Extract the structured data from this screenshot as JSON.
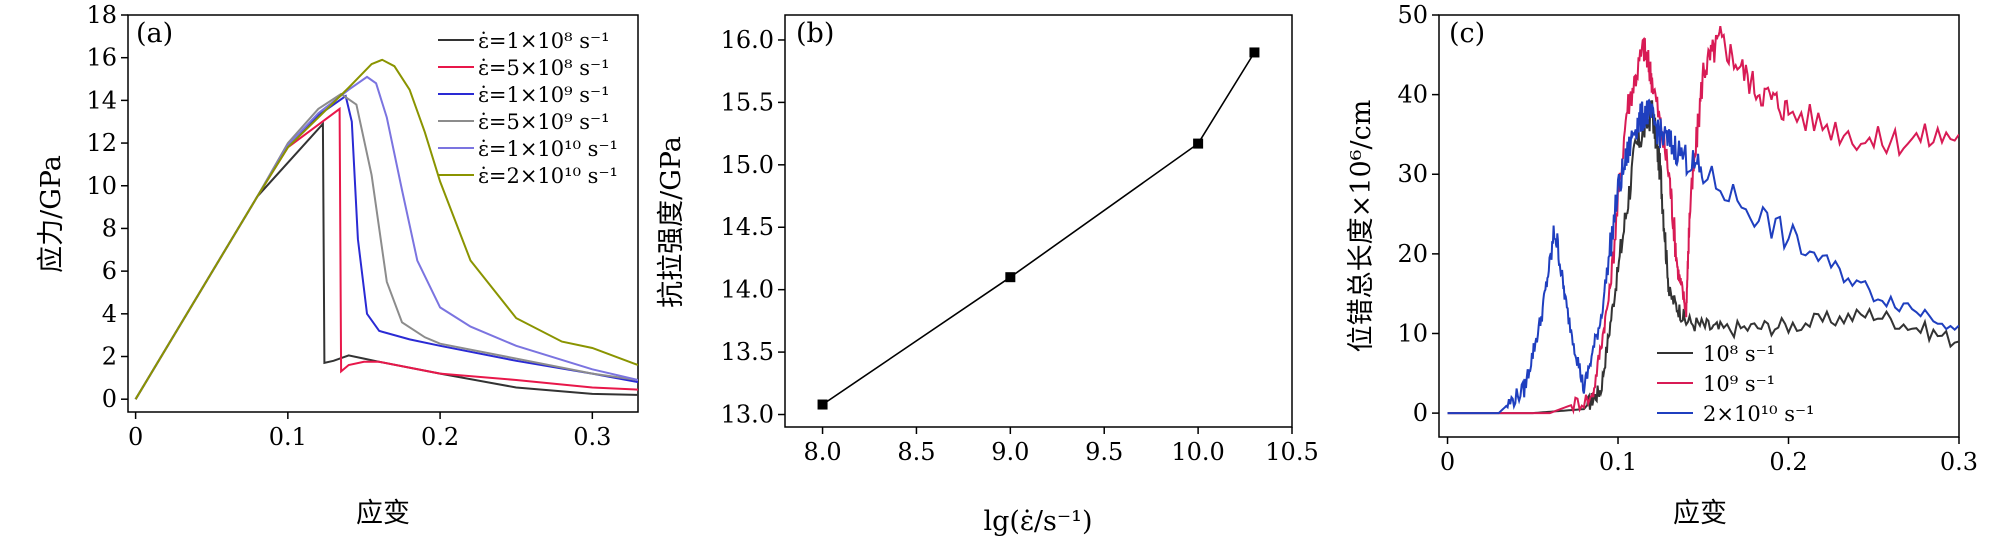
{
  "chart_data": [
    {
      "panel": "(a)",
      "type": "line",
      "xlabel": "应变",
      "ylabel": "应力/GPa",
      "xlim": [
        -0.005,
        0.33
      ],
      "ylim": [
        -0.6,
        18
      ],
      "xticks": [
        0,
        0.1,
        0.2,
        0.3
      ],
      "xticklabels": [
        "0",
        "0.1",
        "0.2",
        "0.3"
      ],
      "yticks": [
        0,
        2,
        4,
        6,
        8,
        10,
        12,
        14,
        16,
        18
      ],
      "yticklabels": [
        "0",
        "2",
        "4",
        "6",
        "8",
        "10",
        "12",
        "14",
        "16",
        "18"
      ],
      "legend_position": "top-right",
      "series": [
        {
          "name": "ε̇=1×10⁸ s⁻¹",
          "color": "#333333",
          "x": [
            0,
            0.08,
            0.123,
            0.124,
            0.13,
            0.14,
            0.15,
            0.16,
            0.2,
            0.25,
            0.3,
            0.33
          ],
          "y": [
            0,
            9.5,
            12.9,
            1.7,
            1.8,
            2.05,
            1.9,
            1.75,
            1.2,
            0.55,
            0.25,
            0.2
          ]
        },
        {
          "name": "ε̇=5×10⁸ s⁻¹",
          "color": "#e8174a",
          "x": [
            0,
            0.08,
            0.1,
            0.134,
            0.135,
            0.14,
            0.15,
            0.16,
            0.2,
            0.25,
            0.3,
            0.33
          ],
          "y": [
            0,
            9.5,
            11.8,
            13.6,
            1.3,
            1.6,
            1.75,
            1.75,
            1.2,
            0.9,
            0.55,
            0.45
          ]
        },
        {
          "name": "ε̇=1×10⁹ s⁻¹",
          "color": "#2a2ad4",
          "x": [
            0,
            0.08,
            0.1,
            0.12,
            0.138,
            0.142,
            0.146,
            0.152,
            0.16,
            0.18,
            0.2,
            0.25,
            0.3,
            0.33
          ],
          "y": [
            0,
            9.5,
            11.9,
            13.3,
            14.2,
            13.0,
            7.5,
            4.0,
            3.2,
            2.8,
            2.5,
            1.8,
            1.2,
            0.8
          ]
        },
        {
          "name": "ε̇=5×10⁹ s⁻¹",
          "color": "#8c8c8c",
          "x": [
            0,
            0.08,
            0.1,
            0.12,
            0.135,
            0.145,
            0.155,
            0.165,
            0.175,
            0.19,
            0.2,
            0.25,
            0.3,
            0.33
          ],
          "y": [
            0,
            9.5,
            12.0,
            13.6,
            14.3,
            13.8,
            10.5,
            5.5,
            3.6,
            2.9,
            2.6,
            1.9,
            1.2,
            0.9
          ]
        },
        {
          "name": "ε̇=1×10¹⁰ s⁻¹",
          "color": "#7b74e0",
          "x": [
            0,
            0.08,
            0.1,
            0.12,
            0.14,
            0.152,
            0.158,
            0.165,
            0.175,
            0.185,
            0.2,
            0.22,
            0.25,
            0.3,
            0.33
          ],
          "y": [
            0,
            9.5,
            11.9,
            13.4,
            14.5,
            15.1,
            14.8,
            13.2,
            9.8,
            6.5,
            4.3,
            3.4,
            2.5,
            1.4,
            0.9
          ]
        },
        {
          "name": "ε̇=2×10¹⁰ s⁻¹",
          "color": "#8a9400",
          "x": [
            0,
            0.08,
            0.1,
            0.12,
            0.14,
            0.155,
            0.162,
            0.17,
            0.18,
            0.19,
            0.2,
            0.22,
            0.25,
            0.28,
            0.3,
            0.33
          ],
          "y": [
            0,
            9.5,
            11.8,
            13.2,
            14.6,
            15.7,
            15.9,
            15.6,
            14.5,
            12.5,
            10.2,
            6.5,
            3.8,
            2.7,
            2.4,
            1.6
          ]
        }
      ]
    },
    {
      "panel": "(b)",
      "type": "line",
      "xlabel": "lg(ε̇/s⁻¹)",
      "ylabel": "抗拉强度/GPa",
      "xlim": [
        7.8,
        10.5
      ],
      "ylim": [
        12.9,
        16.2
      ],
      "xticks": [
        8.0,
        8.5,
        9.0,
        9.5,
        10.0,
        10.5
      ],
      "xticklabels": [
        "8.0",
        "8.5",
        "9.0",
        "9.5",
        "10.0",
        "10.5"
      ],
      "yticks": [
        13.0,
        13.5,
        14.0,
        14.5,
        15.0,
        15.5,
        16.0
      ],
      "yticklabels": [
        "13.0",
        "13.5",
        "14.0",
        "14.5",
        "15.0",
        "15.5",
        "16.0"
      ],
      "x": [
        8.0,
        9.0,
        10.0,
        10.3
      ],
      "y": [
        13.08,
        14.1,
        15.17,
        15.9
      ]
    },
    {
      "panel": "(c)",
      "type": "line",
      "xlabel": "应变",
      "ylabel": "位错总长度×10⁶/cm",
      "xlim": [
        -0.005,
        0.3
      ],
      "ylim": [
        -3,
        50
      ],
      "xticks": [
        0,
        0.1,
        0.2,
        0.3
      ],
      "xticklabels": [
        "0",
        "0.1",
        "0.2",
        "0.3"
      ],
      "yticks": [
        0,
        10,
        20,
        30,
        40,
        50
      ],
      "yticklabels": [
        "0",
        "10",
        "20",
        "30",
        "40",
        "50"
      ],
      "legend_position": "bottom-left",
      "series": [
        {
          "name": "10⁸ s⁻¹",
          "color": "#333333",
          "x": [
            0,
            0.05,
            0.08,
            0.09,
            0.1,
            0.11,
            0.12,
            0.125,
            0.13,
            0.14,
            0.16,
            0.2,
            0.25,
            0.3
          ],
          "y": [
            0,
            0,
            0.5,
            3,
            18,
            33,
            38,
            30,
            15,
            11.5,
            10.5,
            11,
            12.5,
            9
          ]
        },
        {
          "name": "10⁹ s⁻¹",
          "color": "#d81b55",
          "x": [
            0,
            0.06,
            0.085,
            0.095,
            0.105,
            0.115,
            0.12,
            0.13,
            0.135,
            0.14,
            0.142,
            0.15,
            0.16,
            0.18,
            0.2,
            0.25,
            0.3
          ],
          "y": [
            0,
            0,
            2,
            15,
            38,
            46,
            42,
            30,
            18,
            13,
            25,
            43,
            47,
            41,
            38,
            34,
            35
          ]
        },
        {
          "name": "2×10¹⁰ s⁻¹",
          "color": "#1f3fbf",
          "x": [
            0,
            0.03,
            0.045,
            0.055,
            0.063,
            0.07,
            0.08,
            0.09,
            0.1,
            0.11,
            0.117,
            0.125,
            0.135,
            0.15,
            0.2,
            0.25,
            0.3
          ],
          "y": [
            0,
            0,
            3,
            12,
            23,
            13,
            3,
            12,
            28,
            36,
            38,
            35,
            33,
            30,
            22,
            15,
            11
          ]
        }
      ]
    }
  ]
}
